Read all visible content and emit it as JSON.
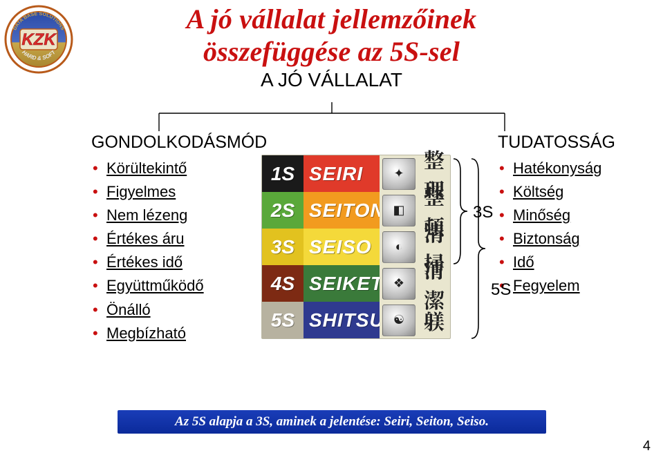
{
  "title_line1": "A jó vállalat jellemzőinek",
  "title_line2": "összefüggése az 5S-sel",
  "title_color": "#c91010",
  "title_fontsize": 40,
  "subtitle": "A JÓ VÁLLALAT",
  "subtitle_fontsize": 28,
  "bullet_color": "#c91010",
  "left_heading": "GONDOLKODÁSMÓD",
  "left_heading_fontsize": 25,
  "left_items": [
    "Körültekintő",
    "Figyelmes",
    "Nem lézeng",
    "Értékes áru",
    "Értékes idő",
    "Együttműködő",
    "Önálló",
    "Megbízható"
  ],
  "right_heading": "TUDATOSSÁG",
  "right_heading_fontsize": 25,
  "right_items": [
    "Hatékonyság",
    "Költség",
    "Minőség",
    "Biztonság",
    "Idő",
    "Fegyelem"
  ],
  "five_s": {
    "rows": [
      {
        "n": "1S",
        "word": "SEIRI",
        "tag_bg": "#1a1a1a",
        "word_bg": "#e03a2a",
        "kanji": "整 理",
        "icon": "✦"
      },
      {
        "n": "2S",
        "word": "SEITON",
        "tag_bg": "#5aa83a",
        "word_bg": "#f29b1f",
        "kanji": "整 頓",
        "icon": "◧"
      },
      {
        "n": "3S",
        "word": "SEISO",
        "tag_bg": "#e2c21f",
        "word_bg": "#f4d93a",
        "kanji": "清 掃",
        "icon": "◐"
      },
      {
        "n": "4S",
        "word": "SEIKETSU",
        "tag_bg": "#7d2a13",
        "word_bg": "#3a7a3a",
        "kanji": "清 潔",
        "icon": "❖"
      },
      {
        "n": "5S",
        "word": "SHITSUKE",
        "tag_bg": "#b7b2a0",
        "word_bg": "#2f3a8f",
        "kanji": "躾",
        "icon": "☯"
      }
    ]
  },
  "brace3_label": "3S",
  "brace5_label": "5S",
  "footer_text": "Az 5S alapja a 3S, aminek a jelentése: Seiri, Seiton, Seiso.",
  "page_number": "4",
  "logo": {
    "outer_stroke": "#b85a1a",
    "inner_top": "#2a4aa8",
    "inner_bottom": "#c9a84a",
    "text_color": "#d92a2a",
    "arc_top": "DATA BASE SOLUTIONS",
    "arc_bottom": "HARD & SOFT",
    "center": "KZK"
  }
}
